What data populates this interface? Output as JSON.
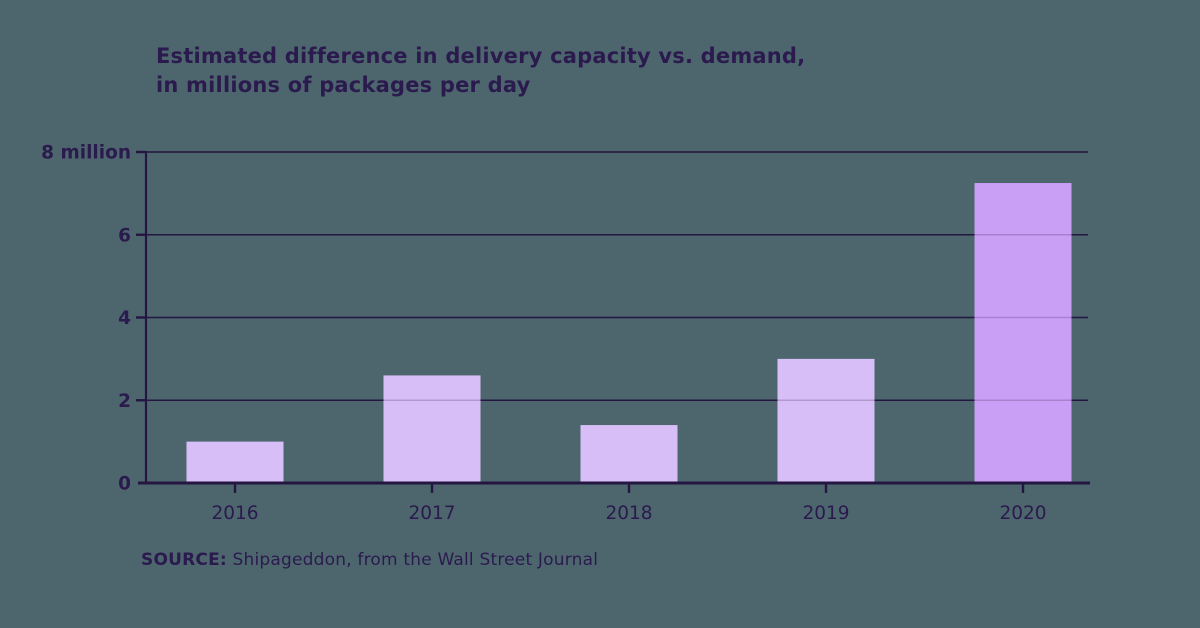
{
  "colors": {
    "background": "#4d666e",
    "text": "#2b1a4d",
    "axis": "#241640",
    "bar": "#d8bef6",
    "bar_highlight": "#c99ff6"
  },
  "title": {
    "line1": "Estimated difference in delivery capacity vs. demand,",
    "line2": "in millions of packages per day"
  },
  "source": {
    "label": "SOURCE:",
    "text": " Shipageddon, from the Wall Street Journal"
  },
  "chart_data": {
    "type": "bar",
    "title": "Estimated difference in delivery capacity vs. demand, in millions of packages per day",
    "categories": [
      "2016",
      "2017",
      "2018",
      "2019",
      "2020"
    ],
    "values": [
      1.0,
      2.6,
      1.4,
      3.0,
      7.25
    ],
    "xlabel": "",
    "ylabel": "millions of packages per day",
    "ylim": [
      0,
      8
    ],
    "yticks": [
      0,
      2,
      4,
      6,
      8
    ],
    "ytick_labels": [
      "0",
      "2",
      "4",
      "6",
      "8 million"
    ],
    "grid": true,
    "legend": false,
    "highlight_index": 4,
    "source": "SOURCE: Shipageddon, from the Wall Street Journal"
  }
}
